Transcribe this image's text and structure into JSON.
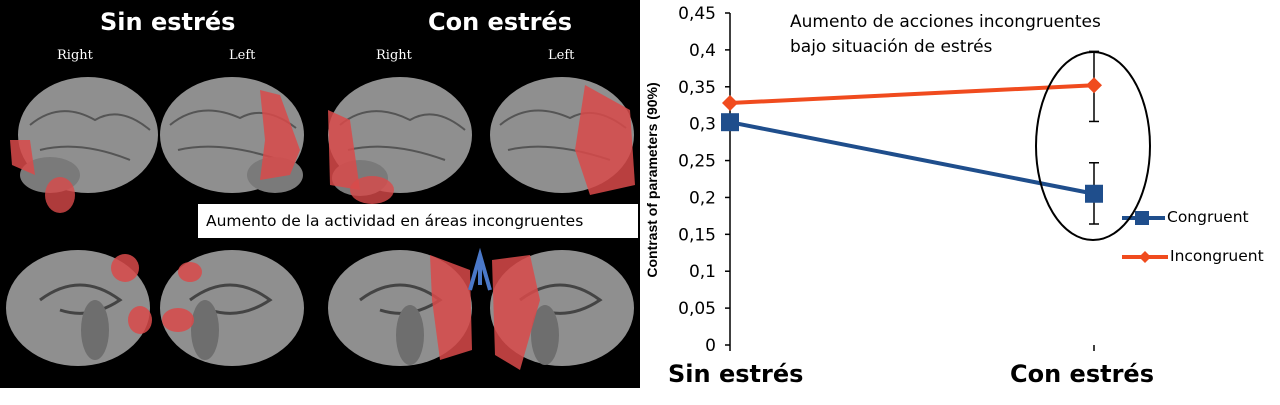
{
  "left_panel": {
    "header_left": "Sin estrés",
    "header_right": "Con estrés",
    "side_labels": [
      "Right",
      "Left",
      "Right",
      "Left"
    ],
    "caption": "Aumento de la actividad en áreas incongruentes"
  },
  "annotation": "Aumento de acciones incongruentes\nbajo situación de estrés",
  "colors": {
    "congruent": "#1f4e8c",
    "incongruent": "#f04b1e",
    "highlight": "#e05555"
  },
  "chart_data": {
    "type": "line",
    "categories": [
      "Sin estrés",
      "Con estrés"
    ],
    "ylabel": "Contrast of parameters (90%)",
    "ylim": [
      0,
      0.45
    ],
    "yticks": [
      "0",
      "0,05",
      "0,1",
      "0,15",
      "0,2",
      "0,25",
      "0,3",
      "0,35",
      "0,4",
      "0,45"
    ],
    "series": [
      {
        "name": "Congruent",
        "values": [
          0.302,
          0.205
        ],
        "error_high": [
          null,
          0.247
        ],
        "error_low": [
          null,
          0.164
        ]
      },
      {
        "name": "Incongruent",
        "values": [
          0.328,
          0.352
        ],
        "error_high": [
          null,
          0.398
        ],
        "error_low": [
          null,
          0.303
        ]
      }
    ]
  }
}
